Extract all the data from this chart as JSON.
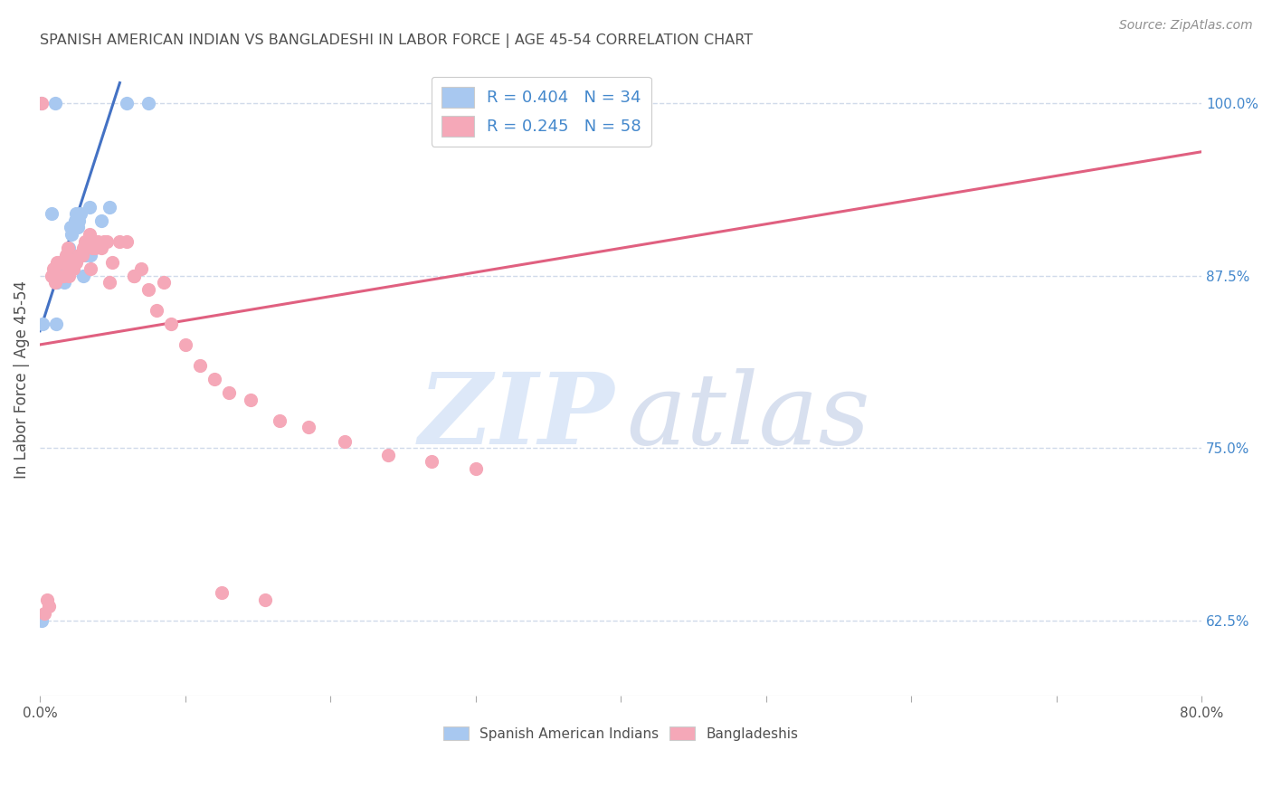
{
  "title": "SPANISH AMERICAN INDIAN VS BANGLADESHI IN LABOR FORCE | AGE 45-54 CORRELATION CHART",
  "source": "Source: ZipAtlas.com",
  "ylabel": "In Labor Force | Age 45-54",
  "xlim": [
    0.0,
    80.0
  ],
  "ylim": [
    57.0,
    103.0
  ],
  "xticks": [
    0.0,
    10.0,
    20.0,
    30.0,
    40.0,
    50.0,
    60.0,
    70.0,
    80.0
  ],
  "xticklabels": [
    "0.0%",
    "",
    "",
    "",
    "",
    "",
    "",
    "",
    "80.0%"
  ],
  "yticks_right": [
    62.5,
    75.0,
    87.5,
    100.0
  ],
  "yticklabels_right": [
    "62.5%",
    "75.0%",
    "87.5%",
    "100.0%"
  ],
  "legend1_R": "0.404",
  "legend1_N": "34",
  "legend2_R": "0.245",
  "legend2_N": "58",
  "legend1_label": "Spanish American Indians",
  "legend2_label": "Bangladeshis",
  "blue_color": "#a8c8f0",
  "pink_color": "#f5a8b8",
  "blue_line_color": "#4472c4",
  "pink_line_color": "#e06080",
  "title_color": "#505050",
  "source_color": "#909090",
  "grid_color": "#d0daea",
  "right_label_color": "#4488cc",
  "background_color": "#ffffff",
  "blue_trend_x": [
    0.0,
    5.5
  ],
  "blue_trend_y": [
    83.5,
    101.5
  ],
  "pink_trend_x": [
    0.0,
    80.0
  ],
  "pink_trend_y": [
    82.5,
    96.5
  ],
  "scatter_blue_x": [
    0.1,
    0.2,
    0.8,
    1.0,
    1.1,
    1.2,
    1.3,
    1.4,
    1.5,
    1.6,
    1.7,
    1.8,
    1.9,
    2.0,
    2.1,
    2.2,
    2.3,
    2.4,
    2.5,
    2.6,
    2.7,
    2.8,
    3.0,
    3.2,
    3.4,
    3.5,
    4.2,
    4.8,
    6.0,
    7.5,
    0.05,
    1.05,
    1.55,
    1.65
  ],
  "scatter_blue_y": [
    62.5,
    84.0,
    92.0,
    87.5,
    84.0,
    87.0,
    88.5,
    88.0,
    88.0,
    88.5,
    88.0,
    88.5,
    89.0,
    89.5,
    91.0,
    90.5,
    91.0,
    91.5,
    92.0,
    91.0,
    91.5,
    92.0,
    87.5,
    89.0,
    92.5,
    89.0,
    91.5,
    92.5,
    100.0,
    100.0,
    100.0,
    100.0,
    88.0,
    87.0
  ],
  "scatter_pink_x": [
    0.1,
    0.3,
    0.5,
    0.6,
    0.9,
    1.0,
    1.2,
    1.3,
    1.5,
    1.6,
    1.7,
    1.8,
    1.9,
    2.0,
    2.1,
    2.2,
    2.4,
    2.5,
    2.7,
    2.9,
    3.0,
    3.1,
    3.2,
    3.4,
    3.6,
    3.8,
    4.0,
    4.2,
    4.4,
    4.6,
    5.0,
    5.5,
    6.0,
    6.5,
    7.0,
    7.5,
    8.0,
    9.0,
    10.0,
    11.0,
    12.0,
    13.0,
    14.5,
    16.5,
    18.5,
    21.0,
    24.0,
    27.0,
    30.0,
    0.8,
    1.05,
    2.3,
    3.5,
    4.8,
    6.5,
    8.5,
    12.5,
    15.5
  ],
  "scatter_pink_y": [
    100.0,
    63.0,
    64.0,
    63.5,
    88.0,
    87.5,
    88.5,
    87.5,
    88.5,
    87.5,
    88.5,
    89.0,
    89.5,
    87.5,
    88.0,
    88.5,
    88.5,
    88.5,
    89.0,
    89.0,
    89.5,
    90.0,
    90.0,
    90.5,
    89.5,
    89.5,
    90.0,
    89.5,
    90.0,
    90.0,
    88.5,
    90.0,
    90.0,
    87.5,
    88.0,
    86.5,
    85.0,
    84.0,
    82.5,
    81.0,
    80.0,
    79.0,
    78.5,
    77.0,
    76.5,
    75.5,
    74.5,
    74.0,
    73.5,
    87.5,
    87.0,
    88.0,
    88.0,
    87.0,
    87.5,
    87.0,
    64.5,
    64.0
  ]
}
